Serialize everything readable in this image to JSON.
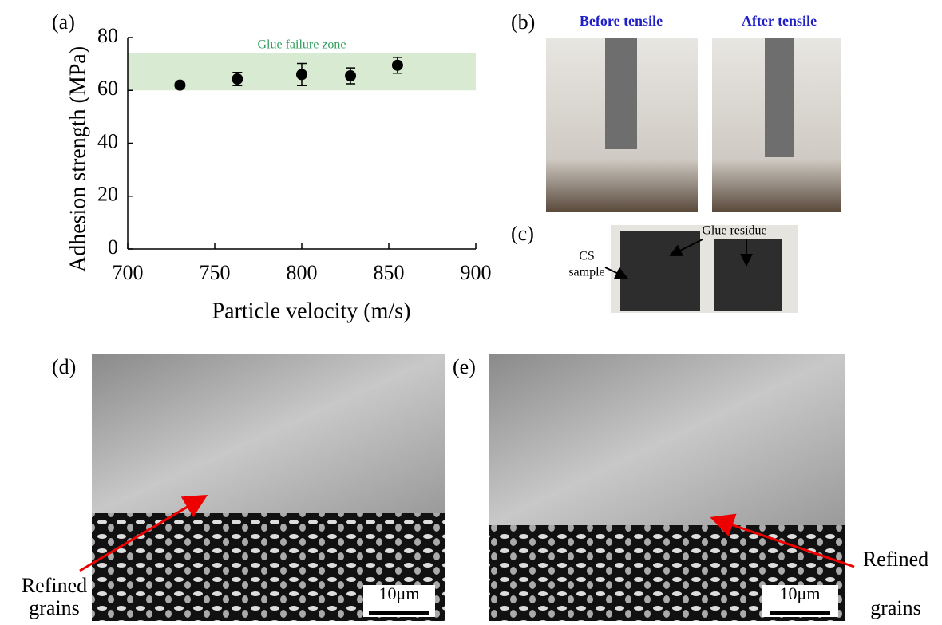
{
  "chart_data": {
    "type": "scatter",
    "ylabel": "Adhesion strength (MPa)",
    "xlabel": "Particle velocity (m/s)",
    "x": [
      730,
      763,
      800,
      828,
      855
    ],
    "series": [
      {
        "color": "#000000",
        "values": [
          62,
          64.3,
          66,
          65.5,
          69.5
        ],
        "errors": [
          1,
          2.5,
          4.2,
          3,
          3
        ]
      }
    ],
    "xlim": [
      700,
      900
    ],
    "xticks": [
      700,
      750,
      800,
      850,
      900
    ],
    "ylim": [
      0,
      80
    ],
    "yticks": [
      0,
      20,
      40,
      60,
      80
    ],
    "band": {
      "label": "Glue failure zone",
      "range": [
        60,
        74
      ],
      "color": "#d9ead3",
      "label_color": "#2e9e5b"
    }
  },
  "figure": {
    "labels": [
      "(a)",
      "(b)",
      "(c)",
      "(d)",
      "(e)"
    ],
    "photos": {
      "before": "Before tensile",
      "after": "After tensile",
      "glue": "Glue residue",
      "cs": [
        "CS",
        "sample"
      ]
    },
    "sem": {
      "refined": [
        "Refined",
        "grains"
      ],
      "scale": "10μm"
    }
  }
}
